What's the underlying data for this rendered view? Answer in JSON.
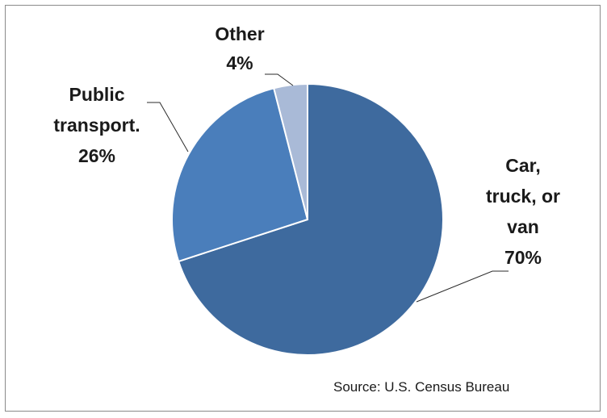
{
  "chart_data": {
    "type": "pie",
    "slices": [
      {
        "label": "Car, truck, or van",
        "value": 70,
        "value_label": "70%",
        "label_lines": [
          "Car,",
          "truck, or",
          "van",
          "70%"
        ],
        "color": "#3e6a9e"
      },
      {
        "label": "Public transport.",
        "value": 26,
        "value_label": "26%",
        "label_lines": [
          "Public",
          "transport.",
          "26%"
        ],
        "color": "#4a7ebb"
      },
      {
        "label": "Other",
        "value": 4,
        "value_label": "4%",
        "label_lines": [
          "Other",
          "4%"
        ],
        "color": "#a9bad7"
      }
    ],
    "source": "Source: U.S. Census Bureau"
  }
}
